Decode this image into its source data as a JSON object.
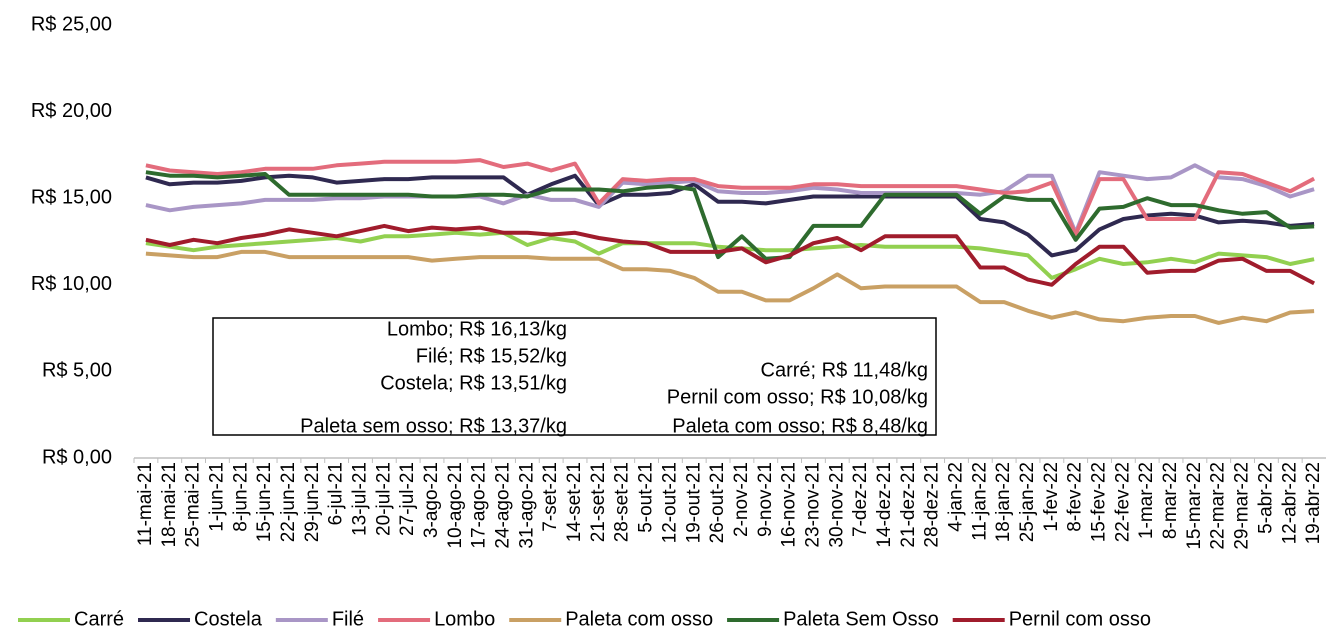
{
  "chart_data": {
    "type": "line",
    "categories": [
      "11-mai-21",
      "18-mai-21",
      "25-mai-21",
      "1-jun-21",
      "8-jun-21",
      "15-jun-21",
      "22-jun-21",
      "29-jun-21",
      "6-jul-21",
      "13-jul-21",
      "20-jul-21",
      "27-jul-21",
      "3-ago-21",
      "10-ago-21",
      "17-ago-21",
      "24-ago-21",
      "31-ago-21",
      "7-set-21",
      "14-set-21",
      "21-set-21",
      "28-set-21",
      "5-out-21",
      "12-out-21",
      "19-out-21",
      "26-out-21",
      "2-nov-21",
      "9-nov-21",
      "16-nov-21",
      "23-nov-21",
      "30-nov-21",
      "7-dez-21",
      "14-dez-21",
      "21-dez-21",
      "28-dez-21",
      "4-jan-22",
      "11-jan-22",
      "18-jan-22",
      "25-jan-22",
      "1-fev-22",
      "8-fev-22",
      "15-fev-22",
      "22-fev-22",
      "1-mar-22",
      "8-mar-22",
      "15-mar-22",
      "22-mar-22",
      "29-mar-22",
      "5-abr-22",
      "12-abr-22",
      "19-abr-22"
    ],
    "series": [
      {
        "name": "Carré",
        "color": "#92d050",
        "values": [
          12.4,
          12.2,
          12.0,
          12.2,
          12.3,
          12.4,
          12.5,
          12.6,
          12.7,
          12.5,
          12.8,
          12.8,
          12.9,
          13.0,
          12.9,
          13.0,
          12.3,
          12.7,
          12.5,
          11.8,
          12.4,
          12.4,
          12.4,
          12.4,
          12.2,
          12.1,
          12.0,
          12.0,
          12.1,
          12.2,
          12.3,
          12.2,
          12.2,
          12.2,
          12.2,
          12.1,
          11.9,
          11.7,
          10.4,
          10.9,
          11.5,
          11.2,
          11.3,
          11.5,
          11.3,
          11.8,
          11.7,
          11.6,
          11.2,
          11.48
        ]
      },
      {
        "name": "Costela",
        "color": "#2f2950",
        "values": [
          16.2,
          15.8,
          15.9,
          15.9,
          16.0,
          16.2,
          16.3,
          16.2,
          15.9,
          16.0,
          16.1,
          16.1,
          16.2,
          16.2,
          16.2,
          16.2,
          15.2,
          15.8,
          16.3,
          14.6,
          15.2,
          15.2,
          15.3,
          15.8,
          14.8,
          14.8,
          14.7,
          14.9,
          15.1,
          15.1,
          15.1,
          15.1,
          15.1,
          15.1,
          15.1,
          13.8,
          13.6,
          12.9,
          11.7,
          12.0,
          13.2,
          13.8,
          14.0,
          14.1,
          14.0,
          13.6,
          13.7,
          13.6,
          13.4,
          13.51
        ]
      },
      {
        "name": "Filé",
        "color": "#a996c6",
        "values": [
          14.6,
          14.3,
          14.5,
          14.6,
          14.7,
          14.9,
          14.9,
          14.9,
          15.0,
          15.0,
          15.1,
          15.1,
          15.1,
          15.1,
          15.1,
          14.7,
          15.2,
          14.9,
          14.9,
          14.5,
          15.9,
          15.8,
          15.9,
          16.0,
          15.4,
          15.3,
          15.3,
          15.4,
          15.6,
          15.5,
          15.3,
          15.3,
          15.3,
          15.3,
          15.3,
          15.2,
          15.4,
          16.3,
          16.3,
          13.0,
          16.5,
          16.3,
          16.1,
          16.2,
          16.9,
          16.2,
          16.1,
          15.7,
          15.1,
          15.52
        ]
      },
      {
        "name": "Lombo",
        "color": "#e36c7c",
        "values": [
          16.9,
          16.6,
          16.5,
          16.4,
          16.5,
          16.7,
          16.7,
          16.7,
          16.9,
          17.0,
          17.1,
          17.1,
          17.1,
          17.1,
          17.2,
          16.8,
          17.0,
          16.6,
          17.0,
          14.7,
          16.1,
          16.0,
          16.1,
          16.1,
          15.7,
          15.6,
          15.6,
          15.6,
          15.8,
          15.8,
          15.7,
          15.7,
          15.7,
          15.7,
          15.7,
          15.5,
          15.3,
          15.4,
          15.9,
          12.9,
          16.1,
          16.1,
          13.8,
          13.8,
          13.8,
          16.5,
          16.4,
          15.9,
          15.4,
          16.13
        ]
      },
      {
        "name": "Paleta com osso",
        "color": "#c9a064",
        "values": [
          11.8,
          11.7,
          11.6,
          11.6,
          11.9,
          11.9,
          11.6,
          11.6,
          11.6,
          11.6,
          11.6,
          11.6,
          11.4,
          11.5,
          11.6,
          11.6,
          11.6,
          11.5,
          11.5,
          11.5,
          10.9,
          10.9,
          10.8,
          10.4,
          9.6,
          9.6,
          9.1,
          9.1,
          9.8,
          10.6,
          9.8,
          9.9,
          9.9,
          9.9,
          9.9,
          9.0,
          9.0,
          8.5,
          8.1,
          8.4,
          8.0,
          7.9,
          8.1,
          8.2,
          8.2,
          7.8,
          8.1,
          7.9,
          8.4,
          8.48
        ]
      },
      {
        "name": "Paleta Sem Osso",
        "color": "#2e6b2e",
        "values": [
          16.5,
          16.3,
          16.3,
          16.2,
          16.3,
          16.4,
          15.2,
          15.2,
          15.2,
          15.2,
          15.2,
          15.2,
          15.1,
          15.1,
          15.2,
          15.2,
          15.1,
          15.5,
          15.5,
          15.5,
          15.4,
          15.6,
          15.7,
          15.5,
          11.6,
          12.8,
          11.5,
          11.6,
          13.4,
          13.4,
          13.4,
          15.2,
          15.2,
          15.2,
          15.2,
          14.1,
          15.1,
          14.9,
          14.9,
          12.6,
          14.4,
          14.5,
          15.0,
          14.6,
          14.6,
          14.3,
          14.1,
          14.2,
          13.3,
          13.37
        ]
      },
      {
        "name": "Pernil com osso",
        "color": "#a01c2c",
        "values": [
          12.6,
          12.3,
          12.6,
          12.4,
          12.7,
          12.9,
          13.2,
          13.0,
          12.8,
          13.1,
          13.4,
          13.1,
          13.3,
          13.2,
          13.3,
          13.0,
          13.0,
          12.9,
          13.0,
          12.7,
          12.5,
          12.4,
          11.9,
          11.9,
          11.9,
          12.1,
          11.3,
          11.7,
          12.4,
          12.7,
          12.0,
          12.8,
          12.8,
          12.8,
          12.8,
          11.0,
          11.0,
          10.3,
          10.0,
          11.2,
          12.2,
          12.2,
          10.7,
          10.8,
          10.8,
          11.4,
          11.5,
          10.8,
          10.8,
          10.08
        ]
      }
    ],
    "ylim": [
      0,
      25
    ],
    "yticks": [
      {
        "value": 0,
        "label": "R$ 0,00"
      },
      {
        "value": 5,
        "label": "R$ 5,00"
      },
      {
        "value": 10,
        "label": "R$ 10,00"
      },
      {
        "value": 15,
        "label": "R$ 15,00"
      },
      {
        "value": 20,
        "label": "R$ 20,00"
      },
      {
        "value": 25,
        "label": "R$ 25,00"
      }
    ],
    "grid": false,
    "legend": "bottom",
    "annotations": {
      "left": [
        "Lombo; R$ 16,13/kg",
        "Filé; R$ 15,52/kg",
        "Costela; R$ 13,51/kg",
        "Paleta sem osso; R$ 13,37/kg"
      ],
      "right": [
        "Carré; R$ 11,48/kg",
        "Pernil com osso; R$ 10,08/kg",
        "Paleta com osso; R$ 8,48/kg"
      ]
    }
  }
}
